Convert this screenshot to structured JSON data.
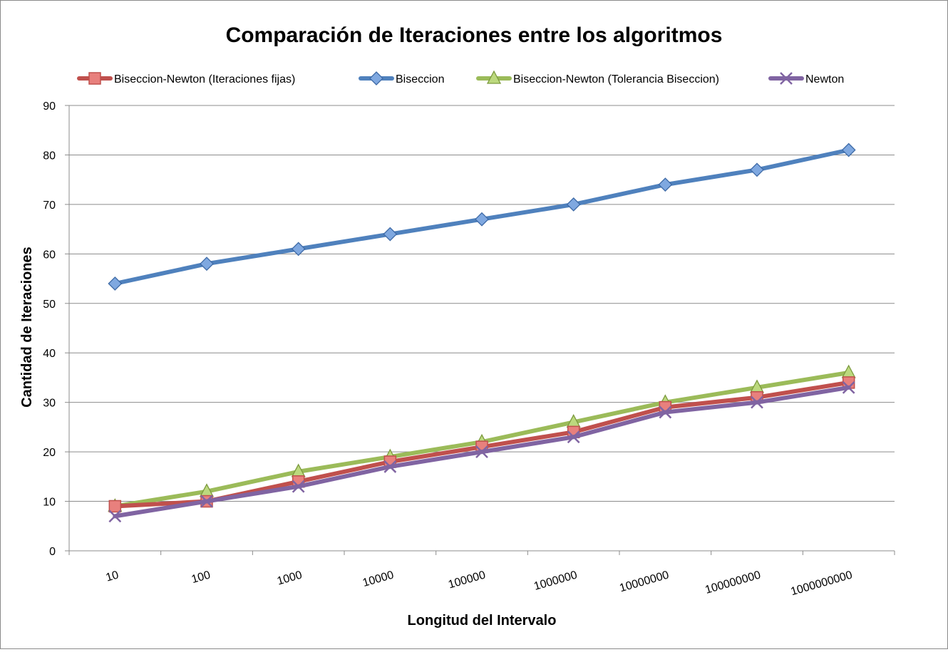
{
  "chart_data": {
    "type": "line",
    "title": "Comparación de Iteraciones entre los algoritmos",
    "xlabel": "Longitud del Intervalo",
    "ylabel": "Cantidad de Iteraciones",
    "categories": [
      "10",
      "100",
      "1000",
      "10000",
      "100000",
      "1000000",
      "10000000",
      "100000000",
      "1000000000"
    ],
    "ylim": [
      0,
      90
    ],
    "yticks": [
      0,
      10,
      20,
      30,
      40,
      50,
      60,
      70,
      80,
      90
    ],
    "grid": true,
    "legend_position": "top",
    "series": [
      {
        "name": "Biseccion-Newton (Iteraciones fijas)",
        "color": "#c0504d",
        "marker": "square",
        "values": [
          9,
          10,
          14,
          18,
          21,
          24,
          29,
          31,
          34
        ]
      },
      {
        "name": "Biseccion",
        "color": "#4f81bd",
        "marker": "diamond",
        "values": [
          54,
          58,
          61,
          64,
          67,
          70,
          74,
          77,
          81
        ]
      },
      {
        "name": "Biseccion-Newton (Tolerancia Biseccion)",
        "color": "#9bbb59",
        "marker": "triangle",
        "values": [
          9,
          12,
          16,
          19,
          22,
          26,
          30,
          33,
          36
        ]
      },
      {
        "name": "Newton",
        "color": "#8064a2",
        "marker": "x",
        "values": [
          7,
          10,
          13,
          17,
          20,
          23,
          28,
          30,
          33
        ]
      }
    ]
  }
}
